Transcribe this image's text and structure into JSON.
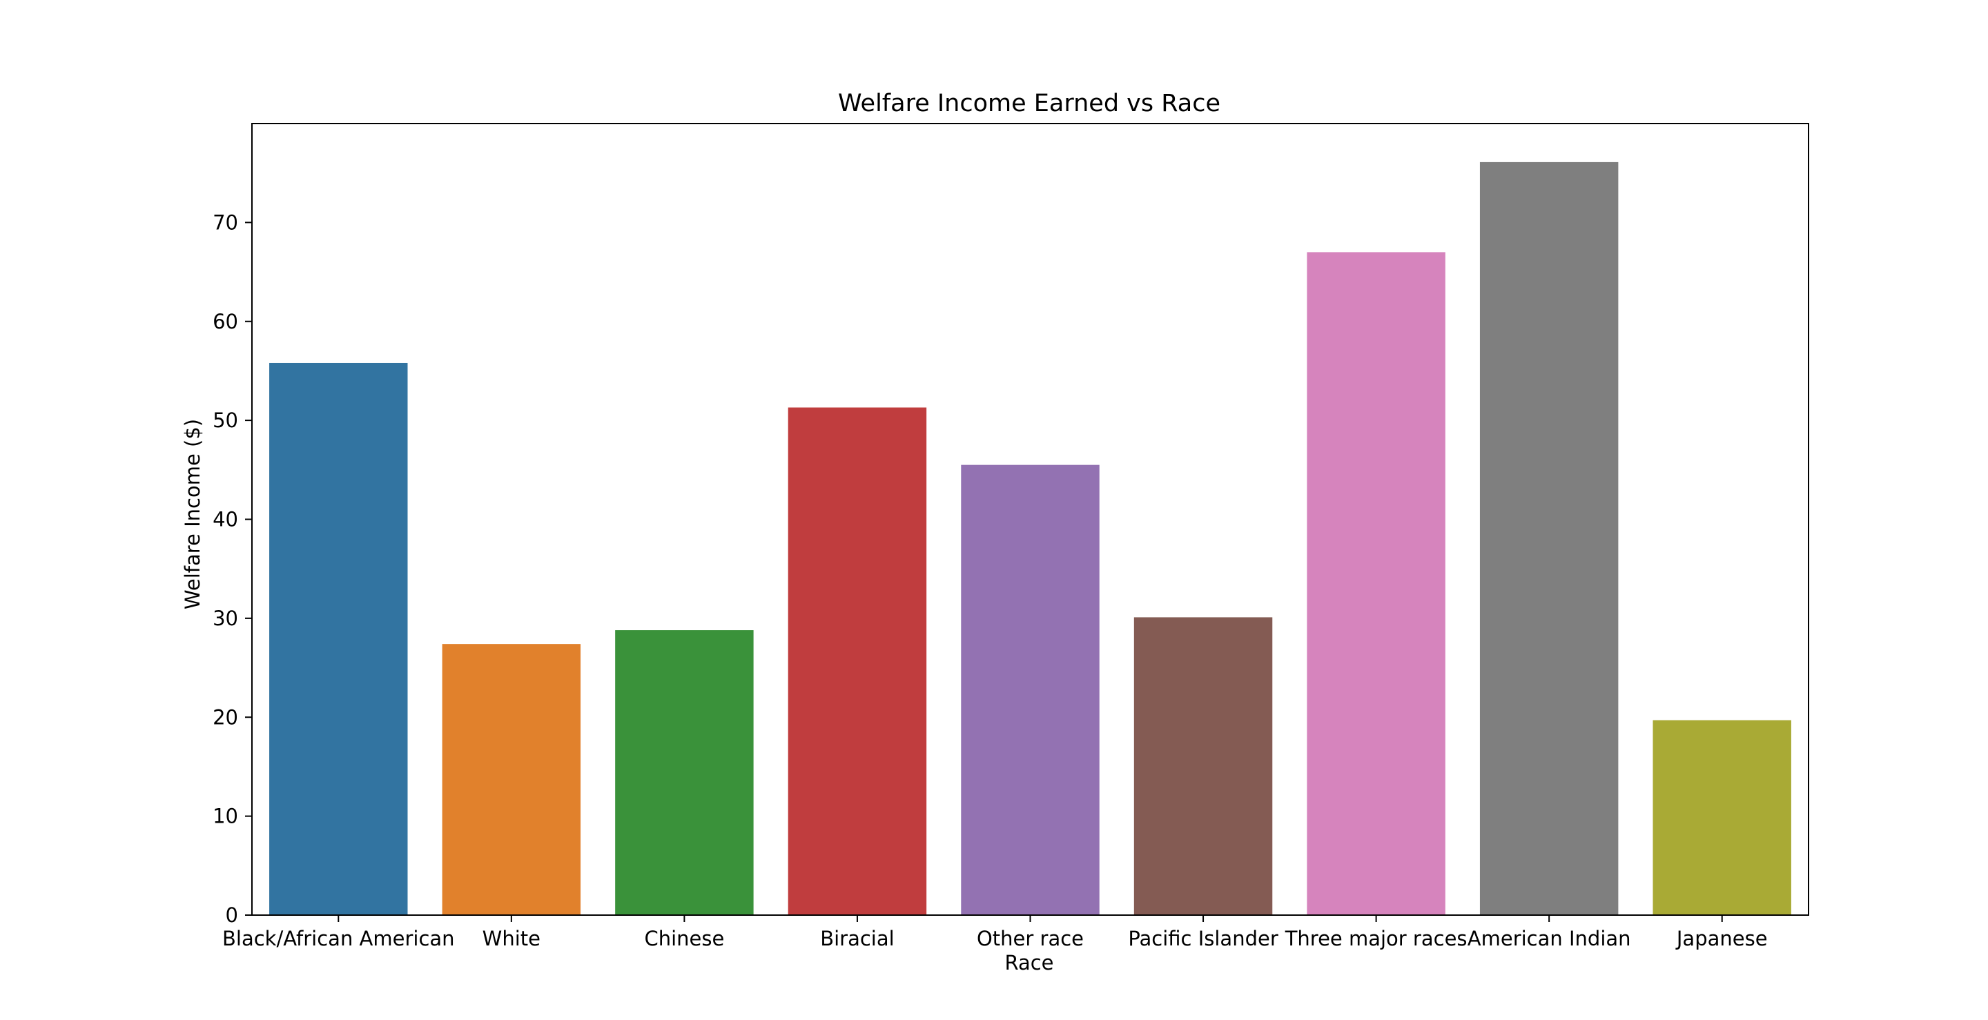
{
  "chart_data": {
    "type": "bar",
    "title": "Welfare Income Earned vs Race",
    "xlabel": "Race",
    "ylabel": "Welfare Income ($)",
    "categories": [
      "Black/African American",
      "White",
      "Chinese",
      "Biracial",
      "Other race",
      "Pacific Islander",
      "Three major races",
      "American Indian",
      "Japanese"
    ],
    "values": [
      55.8,
      27.4,
      28.8,
      51.3,
      45.5,
      30.1,
      67.0,
      76.1,
      19.7
    ],
    "colors": [
      "#3274a1",
      "#e1812c",
      "#3a923a",
      "#c03d3e",
      "#9372b2",
      "#845b53",
      "#d684bd",
      "#7f7f7f",
      "#a9aa35"
    ],
    "ylim": [
      0,
      80
    ],
    "yticks": [
      0,
      10,
      20,
      30,
      40,
      50,
      60,
      70
    ],
    "grid": false,
    "legend": "none"
  }
}
